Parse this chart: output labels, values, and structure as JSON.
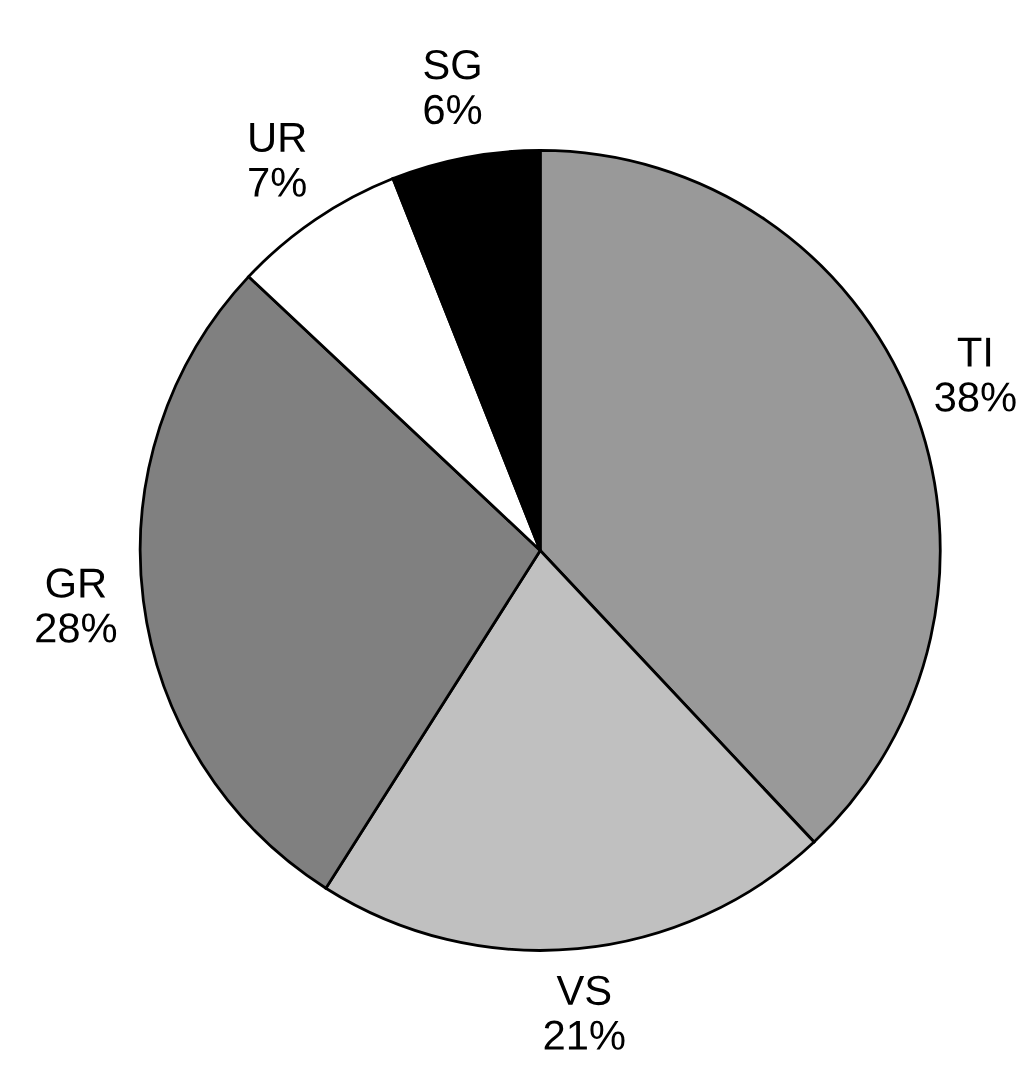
{
  "chart_data": {
    "type": "pie",
    "categories": [
      "TI",
      "VS",
      "GR",
      "UR",
      "SG"
    ],
    "values": [
      38,
      21,
      28,
      7,
      6
    ],
    "value_labels": [
      "38%",
      "21%",
      "28%",
      "7%",
      "6%"
    ],
    "colors": [
      "#999999",
      "#c0c0c0",
      "#808080",
      "#ffffff",
      "#000000"
    ]
  }
}
